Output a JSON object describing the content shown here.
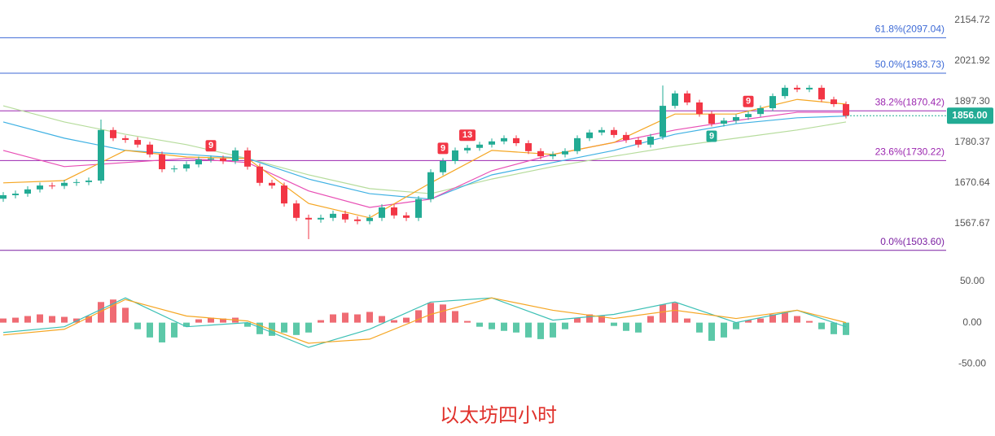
{
  "chart_data": [
    {
      "type": "candlestick",
      "title": "以太坊四小时",
      "open": [
        1630,
        1639,
        1643,
        1654,
        1664,
        1663,
        1671,
        1673,
        1677,
        1815,
        1792,
        1787,
        1774,
        1747,
        1707,
        1709,
        1720,
        1733,
        1736,
        1729,
        1758,
        1714,
        1671,
        1664,
        1618,
        1582,
        1578,
        1582,
        1592,
        1578,
        1574,
        1582,
        1608,
        1588,
        1582,
        1629,
        1699,
        1729,
        1758,
        1765,
        1774,
        1783,
        1792,
        1778,
        1756,
        1742,
        1747,
        1756,
        1792,
        1808,
        1815,
        1801,
        1787,
        1774,
        1796,
        1885,
        1922,
        1895,
        1861,
        1833,
        1842,
        1852,
        1861,
        1878,
        1914,
        1939,
        1934,
        1939,
        1904,
        1890
      ],
      "high": [
        1647,
        1651,
        1662,
        1672,
        1672,
        1679,
        1681,
        1685,
        1845,
        1823,
        1800,
        1795,
        1782,
        1755,
        1717,
        1728,
        1741,
        1744,
        1744,
        1766,
        1766,
        1722,
        1679,
        1672,
        1626,
        1590,
        1590,
        1600,
        1600,
        1586,
        1590,
        1616,
        1616,
        1596,
        1637,
        1707,
        1737,
        1766,
        1773,
        1782,
        1791,
        1800,
        1800,
        1786,
        1764,
        1755,
        1764,
        1800,
        1816,
        1823,
        1823,
        1809,
        1795,
        1804,
        1946,
        1930,
        1930,
        1903,
        1869,
        1850,
        1860,
        1869,
        1886,
        1922,
        1947,
        1947,
        1947,
        1947,
        1912,
        1898
      ],
      "low": [
        1622,
        1631,
        1635,
        1646,
        1655,
        1655,
        1663,
        1665,
        1669,
        1784,
        1779,
        1766,
        1739,
        1699,
        1699,
        1701,
        1712,
        1725,
        1721,
        1721,
        1706,
        1663,
        1656,
        1610,
        1574,
        1530,
        1570,
        1574,
        1570,
        1566,
        1566,
        1574,
        1580,
        1574,
        1574,
        1621,
        1691,
        1721,
        1750,
        1757,
        1766,
        1775,
        1770,
        1748,
        1734,
        1734,
        1739,
        1748,
        1784,
        1800,
        1793,
        1779,
        1766,
        1766,
        1788,
        1877,
        1887,
        1853,
        1825,
        1825,
        1834,
        1844,
        1853,
        1870,
        1906,
        1926,
        1926,
        1896,
        1882,
        1848
      ],
      "close": [
        1639,
        1643,
        1654,
        1664,
        1663,
        1671,
        1673,
        1677,
        1815,
        1792,
        1787,
        1774,
        1747,
        1707,
        1709,
        1720,
        1733,
        1736,
        1729,
        1758,
        1714,
        1671,
        1664,
        1618,
        1582,
        1578,
        1582,
        1592,
        1578,
        1574,
        1582,
        1608,
        1588,
        1582,
        1629,
        1699,
        1729,
        1758,
        1765,
        1774,
        1783,
        1792,
        1778,
        1756,
        1742,
        1747,
        1756,
        1792,
        1808,
        1815,
        1801,
        1787,
        1774,
        1796,
        1885,
        1922,
        1895,
        1861,
        1833,
        1842,
        1852,
        1861,
        1878,
        1914,
        1939,
        1934,
        1939,
        1904,
        1890,
        1856
      ],
      "up_color": "#22ab94",
      "down_color": "#f23645",
      "ylim": [
        1461.6,
        2224.4
      ],
      "log_scale": true,
      "yticks": [
        1567.67,
        1670.64,
        1780.37,
        {
          "value": 1897.3,
          "label": "1897.30"
        },
        2021.92,
        2154.72
      ],
      "levels": [
        {
          "value": 2097.04,
          "label": "61.8%(2097.04)",
          "color": "#3d6ad6"
        },
        {
          "value": 1983.73,
          "label": "50.0%(1983.73)",
          "color": "#3d6ad6"
        },
        {
          "value": 1870.42,
          "label": "38.2%(1870.42)",
          "color": "#9c27b0"
        },
        {
          "value": 1730.22,
          "label": "23.6%(1730.22)",
          "color": "#9c27b0"
        },
        {
          "value": 1503.6,
          "label": "0.0%(1503.60)",
          "color": "#7b1fa2"
        }
      ],
      "last_price": {
        "value": 1856.0,
        "label": "1856.00",
        "color": "#22ab94"
      },
      "series": [
        {
          "color": "#b6dc9c",
          "x": [
            0,
            5,
            10,
            15,
            20,
            25,
            30,
            35,
            40,
            45,
            50,
            55,
            60,
            65,
            69
          ],
          "values": [
            1885,
            1838,
            1803,
            1774,
            1736,
            1692,
            1656,
            1643,
            1681,
            1714,
            1742,
            1769,
            1792,
            1815,
            1838
          ]
        },
        {
          "color": "#3fb1e3",
          "x": [
            0,
            5,
            10,
            15,
            20,
            25,
            30,
            35,
            40,
            45,
            50,
            55,
            60,
            65,
            69
          ],
          "values": [
            1838,
            1792,
            1758,
            1747,
            1736,
            1681,
            1643,
            1629,
            1692,
            1725,
            1758,
            1803,
            1833,
            1850,
            1855
          ]
        },
        {
          "color": "#e84fb5",
          "x": [
            0,
            5,
            10,
            15,
            20,
            25,
            30,
            35,
            40,
            45,
            50,
            55,
            60,
            65,
            69
          ],
          "values": [
            1758,
            1714,
            1725,
            1736,
            1725,
            1650,
            1608,
            1629,
            1703,
            1747,
            1780,
            1815,
            1842,
            1866,
            1866
          ]
        },
        {
          "color": "#f5a623",
          "x": [
            0,
            5,
            10,
            15,
            20,
            25,
            30,
            35,
            40,
            45,
            50,
            55,
            60,
            65,
            69
          ],
          "values": [
            1671,
            1677,
            1758,
            1740,
            1736,
            1618,
            1582,
            1671,
            1758,
            1747,
            1780,
            1861,
            1861,
            1904,
            1890
          ]
        }
      ],
      "badges": [
        {
          "label": "9",
          "candle": 17,
          "side": "above",
          "color": "#f23645"
        },
        {
          "label": "9",
          "candle": 36,
          "side": "above",
          "color": "#f23645"
        },
        {
          "label": "13",
          "candle": 38,
          "side": "above",
          "color": "#f23645"
        },
        {
          "label": "9",
          "candle": 61,
          "side": "above",
          "color": "#f23645"
        },
        {
          "label": "9",
          "candle": 58,
          "side": "below",
          "color": "#22ab94"
        }
      ]
    },
    {
      "type": "macd",
      "histogram": [
        5,
        6,
        8,
        10,
        8,
        7,
        5,
        8,
        25,
        28,
        18,
        -8,
        -18,
        -24,
        -18,
        -5,
        4,
        6,
        5,
        6,
        -5,
        -14,
        -16,
        -12,
        -15,
        -12,
        3,
        10,
        12,
        10,
        13,
        8,
        3,
        6,
        15,
        24,
        22,
        14,
        2,
        -5,
        -8,
        -10,
        -12,
        -18,
        -20,
        -18,
        -8,
        6,
        10,
        8,
        -4,
        -10,
        -12,
        8,
        22,
        24,
        5,
        -12,
        -22,
        -18,
        -8,
        3,
        5,
        10,
        12,
        8,
        2,
        -8,
        -14,
        -15
      ],
      "up_color": "#ef6b73",
      "down_color": "#5cc8a8",
      "ylim": [
        -102,
        60.8
      ],
      "yticks": [
        {
          "value": -50,
          "label": "-50.00"
        },
        {
          "value": 0,
          "label": "0.00"
        },
        {
          "value": 50,
          "label": "50.00"
        }
      ],
      "series": [
        {
          "color": "#3cc0b5",
          "x": [
            0,
            5,
            10,
            15,
            20,
            25,
            30,
            35,
            40,
            45,
            50,
            55,
            60,
            65,
            69
          ],
          "values": [
            -12,
            -5,
            30,
            -5,
            0,
            -30,
            -8,
            25,
            30,
            3,
            10,
            25,
            0,
            15,
            -5
          ]
        },
        {
          "color": "#f5a623",
          "x": [
            0,
            5,
            10,
            15,
            20,
            25,
            30,
            35,
            40,
            45,
            50,
            55,
            60,
            65,
            69
          ],
          "values": [
            -15,
            -8,
            28,
            8,
            2,
            -25,
            -20,
            10,
            30,
            15,
            5,
            15,
            5,
            15,
            0
          ]
        }
      ]
    }
  ]
}
